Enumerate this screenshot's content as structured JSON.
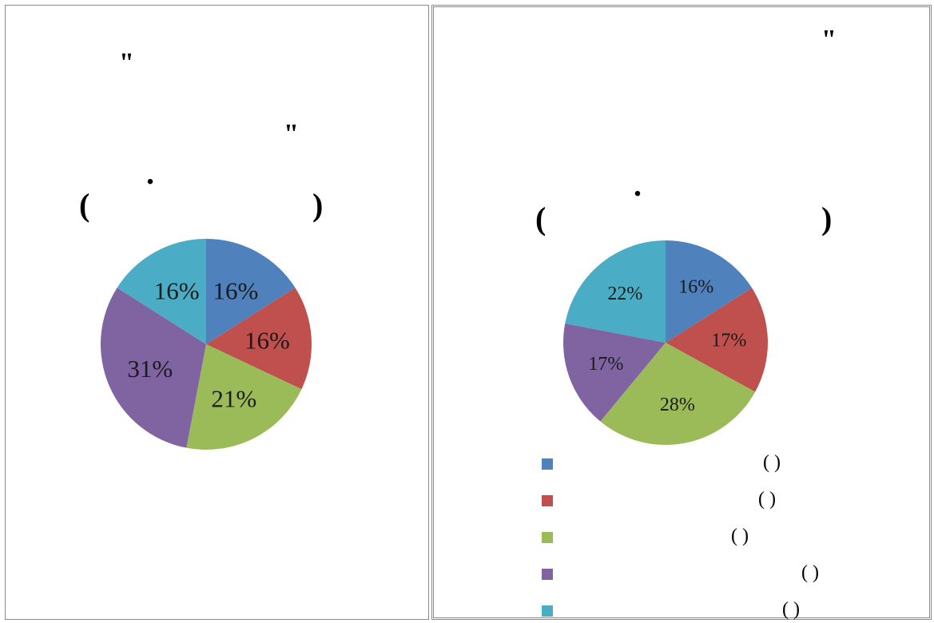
{
  "panels": {
    "left": {
      "glyphs": {
        "quote_open": "\"",
        "quote_close": "\"",
        "dot": ".",
        "paren_open": "(",
        "paren_close": ")"
      }
    },
    "right": {
      "glyphs": {
        "quote": "\"",
        "dot": ".",
        "paren_open": "(",
        "paren_close": ")"
      },
      "legend_parens": [
        "( )",
        "( )",
        "( )",
        "( )",
        "( )"
      ]
    }
  },
  "chart_data": [
    {
      "type": "pie",
      "title": "",
      "slices": [
        {
          "label": "16%",
          "value": 16,
          "color": "#4f81bd"
        },
        {
          "label": "16%",
          "value": 16,
          "color": "#c0504d"
        },
        {
          "label": "21%",
          "value": 21,
          "color": "#9bbb59"
        },
        {
          "label": "31%",
          "value": 31,
          "color": "#8064a2"
        },
        {
          "label": "16%",
          "value": 16,
          "color": "#4bacc6"
        }
      ],
      "legend": "none"
    },
    {
      "type": "pie",
      "title": "",
      "slices": [
        {
          "label": "16%",
          "value": 16,
          "color": "#4f81bd"
        },
        {
          "label": "17%",
          "value": 17,
          "color": "#c0504d"
        },
        {
          "label": "28%",
          "value": 28,
          "color": "#9bbb59"
        },
        {
          "label": "17%",
          "value": 17,
          "color": "#8064a2"
        },
        {
          "label": "22%",
          "value": 22,
          "color": "#4bacc6"
        }
      ],
      "legend": "bottom"
    }
  ]
}
